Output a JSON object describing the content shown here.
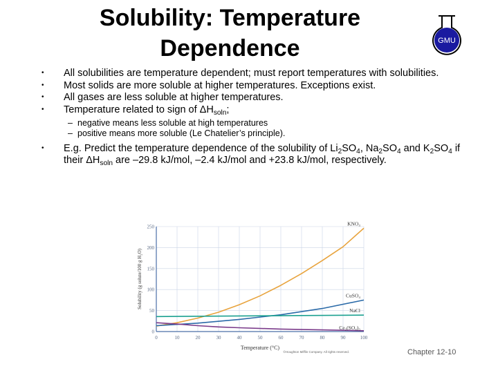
{
  "title": "Solubility: Temperature Dependence",
  "logo": {
    "label": "GMU",
    "icon": "flask-icon"
  },
  "bullets": [
    "All solubilities are temperature dependent; must report temperatures with solubilities.",
    "Most solids are more soluble at higher temperatures.  Exceptions exist.",
    "All gases are less soluble at higher temperatures."
  ],
  "bullet4": {
    "pre": "Temperature related to sign of ",
    "delta": "ΔH",
    "sub": "soln",
    "post": ";"
  },
  "subbullets": [
    "negative means less soluble at high temperatures",
    "positive means more soluble  (Le Chatelier’s principle)."
  ],
  "example": {
    "t1": "E.g. Predict the temperature dependence of the solubility of Li",
    "s1": "2",
    "t2": "SO",
    "s2": "4",
    "t3": ", Na",
    "s3": "2",
    "t4": "SO",
    "s4": "4",
    "t5": " and K",
    "s5": "2",
    "t6": "SO",
    "s6": "4",
    "t7": " if their ΔH",
    "s7": "soln",
    "t8": " are –29.8 kJ/mol, –2.4 kJ/mol and +23.8 kJ/mol, respectively."
  },
  "chart_data": {
    "type": "line",
    "xlabel": "Temperature (°C)",
    "ylabel": "Solubility (g solute/100 g H₂O)",
    "xlim": [
      0,
      100
    ],
    "ylim": [
      0,
      250
    ],
    "xticks": [
      0,
      10,
      20,
      30,
      40,
      50,
      60,
      70,
      80,
      90,
      100
    ],
    "yticks": [
      0,
      50,
      100,
      150,
      200,
      250
    ],
    "grid": true,
    "series": [
      {
        "name": "KNO₃",
        "color": "#e8a33c",
        "x": [
          0,
          10,
          20,
          30,
          40,
          50,
          60,
          70,
          80,
          90,
          100
        ],
        "y": [
          13,
          21,
          32,
          46,
          64,
          85,
          110,
          138,
          169,
          202,
          246
        ]
      },
      {
        "name": "CuSO₄",
        "color": "#2a6aa8",
        "x": [
          0,
          20,
          40,
          60,
          80,
          100
        ],
        "y": [
          14,
          20,
          29,
          40,
          55,
          75
        ]
      },
      {
        "name": "NaCl",
        "color": "#1aa08f",
        "x": [
          0,
          100
        ],
        "y": [
          35.7,
          39.2
        ]
      },
      {
        "name": "Ce₂(SO₄)₃",
        "color": "#7a3a8a",
        "x": [
          0,
          10,
          20,
          30,
          40,
          60,
          80,
          100
        ],
        "y": [
          21,
          18,
          14,
          11,
          9,
          6,
          4,
          2
        ]
      }
    ],
    "credit": "©Houghton Mifflin Company. All rights reserved."
  },
  "footer": "Chapter 12-10",
  "colors": {
    "axis": "#4a6fa8",
    "grid": "#c9d4e6",
    "tick_text": "#5a6a85",
    "flask": "#1a1aa0"
  }
}
